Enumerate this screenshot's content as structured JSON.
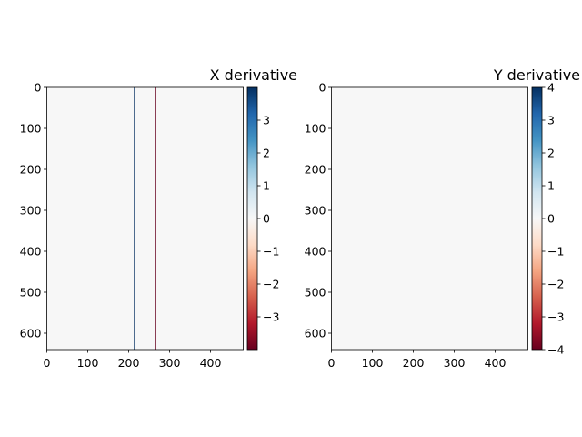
{
  "chart_data": [
    {
      "type": "heatmap",
      "title": "X derivative",
      "xlabel": "",
      "ylabel": "",
      "image_size": [
        480,
        640
      ],
      "xlim": [
        0,
        480
      ],
      "ylim": [
        640,
        0
      ],
      "xticks": [
        0,
        100,
        200,
        300,
        400
      ],
      "yticks": [
        0,
        100,
        200,
        300,
        400,
        500,
        600
      ],
      "background_value": 0,
      "features": [
        {
          "kind": "vertical-line",
          "x": 214,
          "value": 4
        },
        {
          "kind": "vertical-line",
          "x": 265,
          "value": -4
        }
      ],
      "colorbar": {
        "colormap": "RdBu",
        "vmin": -4,
        "vmax": 4,
        "ticks": [
          -3,
          -2,
          -1,
          0,
          1,
          2,
          3
        ],
        "tick_labels": [
          "−3",
          "−2",
          "−1",
          "0",
          "1",
          "2",
          "3"
        ]
      },
      "grid": false
    },
    {
      "type": "heatmap",
      "title": "Y derivative",
      "xlabel": "",
      "ylabel": "",
      "image_size": [
        480,
        640
      ],
      "xlim": [
        0,
        480
      ],
      "ylim": [
        640,
        0
      ],
      "xticks": [
        0,
        100,
        200,
        300,
        400
      ],
      "yticks": [
        0,
        100,
        200,
        300,
        400,
        500,
        600
      ],
      "background_value": 0,
      "features": [],
      "colorbar": {
        "colormap": "RdBu",
        "vmin": -4,
        "vmax": 4,
        "ticks": [
          -4,
          -3,
          -2,
          -1,
          0,
          1,
          2,
          3,
          4
        ],
        "tick_labels": [
          "−4",
          "−3",
          "−2",
          "−1",
          "0",
          "1",
          "2",
          "3",
          "4"
        ]
      },
      "grid": false
    }
  ]
}
